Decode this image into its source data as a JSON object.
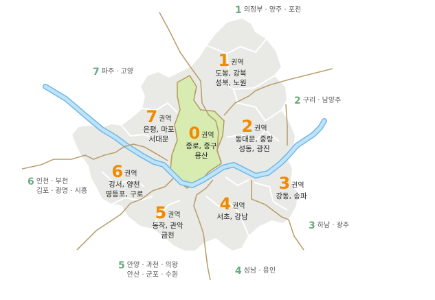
{
  "colors": {
    "land": "#e9e9e6",
    "district_border": "#ffffff",
    "central_zone": "#d8ebb0",
    "central_border": "#b49a5a",
    "boundary_line": "#b8a070",
    "river_fill": "#bfe3f8",
    "river_stroke": "#6fb7e6",
    "region_number": "#f28a00",
    "outer_number": "#6aaa7e"
  },
  "regions": [
    {
      "num": "0",
      "suffix": "권역",
      "areas": [
        "종로, 중구",
        "용산"
      ]
    },
    {
      "num": "1",
      "suffix": "권역",
      "areas": [
        "도봉, 강북",
        "성북, 노원"
      ]
    },
    {
      "num": "2",
      "suffix": "권역",
      "areas": [
        "동대문, 중랑",
        "성동, 광진"
      ]
    },
    {
      "num": "3",
      "suffix": "권역",
      "areas": [
        "강동, 송파"
      ]
    },
    {
      "num": "4",
      "suffix": "권역",
      "areas": [
        "서초, 강남"
      ]
    },
    {
      "num": "5",
      "suffix": "권역",
      "areas": [
        "동작, 관악",
        "금천"
      ]
    },
    {
      "num": "6",
      "suffix": "권역",
      "areas": [
        "강서, 양천",
        "영등포, 구로"
      ]
    },
    {
      "num": "7",
      "suffix": "권역",
      "areas": [
        "은평, 마포",
        "서대문"
      ]
    }
  ],
  "outer": [
    {
      "num": "1",
      "lines": [
        "의정부 · 양주 · 포천"
      ]
    },
    {
      "num": "2",
      "lines": [
        "구리 · 남양주"
      ]
    },
    {
      "num": "3",
      "lines": [
        "하남 · 광주"
      ]
    },
    {
      "num": "4",
      "lines": [
        "성남 · 용인"
      ]
    },
    {
      "num": "5",
      "lines": [
        "안양 · 과천 · 의왕",
        "안산 · 군포 · 수원"
      ]
    },
    {
      "num": "6",
      "lines": [
        "인천 · 부천",
        "김포 · 광명 · 시흥"
      ]
    },
    {
      "num": "7",
      "lines": [
        "파주 · 고양"
      ]
    }
  ]
}
